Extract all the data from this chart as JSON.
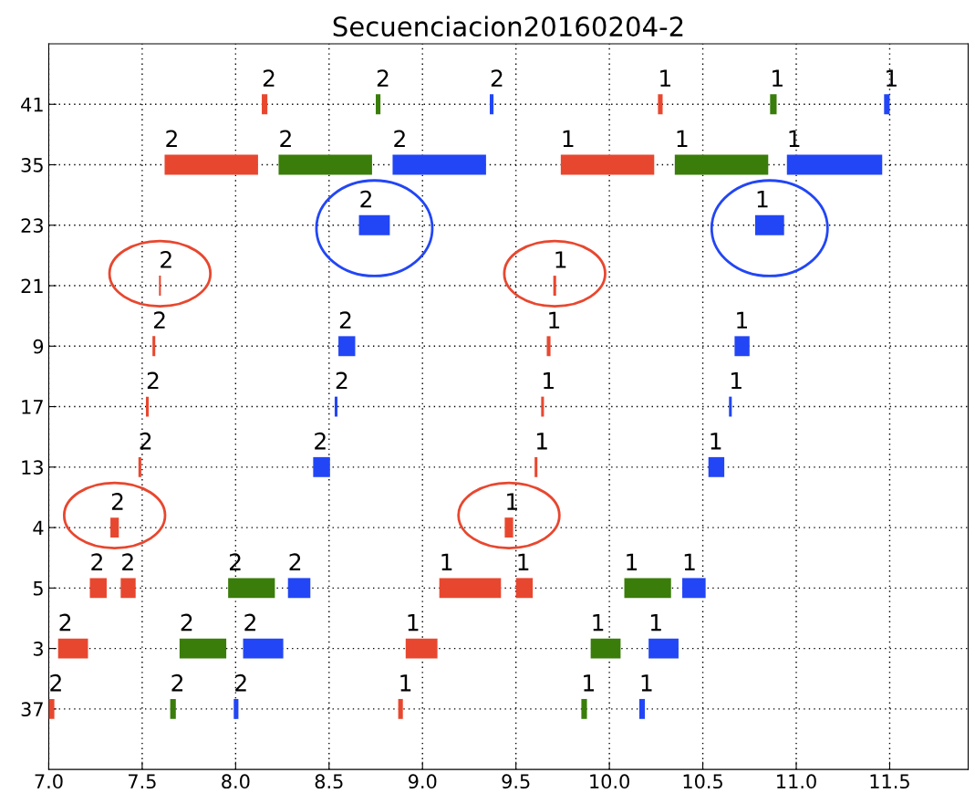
{
  "chart_data": {
    "type": "bar",
    "orientation": "horizontal",
    "title": "Secuenciacion20160204-2",
    "categories": [
      "41",
      "35",
      "23",
      "21",
      "9",
      "17",
      "13",
      "4",
      "5",
      "3",
      "37"
    ],
    "xlim": [
      7.0,
      11.92
    ],
    "xticks": [
      {
        "value": 7,
        "label": "7.0"
      },
      {
        "value": 7.5,
        "label": "7.5"
      },
      {
        "value": 8,
        "label": "8.0"
      },
      {
        "value": 8.5,
        "label": "8.5"
      },
      {
        "value": 9,
        "label": "9.0"
      },
      {
        "value": 9.5,
        "label": "9.5"
      },
      {
        "value": 10,
        "label": "10.0"
      },
      {
        "value": 10.5,
        "label": "10.5"
      },
      {
        "value": 11,
        "label": "11.0"
      },
      {
        "value": 11.5,
        "label": "11.5"
      }
    ],
    "grid": true,
    "series": [
      {
        "base": [
          8.14,
          7.62,
          8.66,
          7.59,
          7.555,
          7.52,
          7.48,
          7.33,
          7.22,
          7.05,
          7.0
        ],
        "values": [
          0.03,
          0.5,
          0.165,
          0.01,
          0.015,
          0.015,
          0.015,
          0.045,
          0.09,
          0.16,
          0.03
        ],
        "colors": [
          "#e8472f",
          "#e8472f",
          "#2246f5",
          "#e8472f",
          "#e8472f",
          "#e8472f",
          "#e8472f",
          "#e8472f",
          "#e8472f",
          "#e8472f",
          "#e8472f"
        ]
      },
      {
        "base": [
          8.75,
          8.23,
          10.78,
          9.7,
          8.55,
          8.53,
          8.415,
          9.44,
          7.385,
          7.7,
          7.65
        ],
        "values": [
          0.025,
          0.5,
          0.155,
          0.015,
          0.09,
          0.015,
          0.09,
          0.045,
          0.08,
          0.25,
          0.03
        ],
        "colors": [
          "#3a7d0a",
          "#3a7d0a",
          "#2246f5",
          "#e8472f",
          "#2246f5",
          "#2246f5",
          "#2246f5",
          "#e8472f",
          "#e8472f",
          "#3a7d0a",
          "#3a7d0a"
        ]
      },
      {
        "base": [
          9.36,
          8.84,
          null,
          null,
          9.665,
          9.635,
          9.6,
          null,
          7.96,
          8.04,
          7.99
        ],
        "values": [
          0.02,
          0.5,
          null,
          null,
          0.02,
          0.015,
          0.015,
          null,
          0.25,
          0.215,
          0.025
        ],
        "colors": [
          "#2246f5",
          "#2246f5",
          null,
          null,
          "#e8472f",
          "#e8472f",
          "#e8472f",
          null,
          "#3a7d0a",
          "#2246f5",
          "#2246f5"
        ]
      },
      {
        "base": [
          10.26,
          9.74,
          null,
          null,
          10.67,
          10.64,
          10.53,
          null,
          8.28,
          8.91,
          8.87
        ],
        "values": [
          0.025,
          0.5,
          null,
          null,
          0.08,
          0.015,
          0.085,
          null,
          0.12,
          0.17,
          0.025
        ],
        "colors": [
          "#e8472f",
          "#e8472f",
          null,
          null,
          "#2246f5",
          "#2246f5",
          "#2246f5",
          null,
          "#2246f5",
          "#e8472f",
          "#e8472f"
        ]
      },
      {
        "base": [
          10.86,
          10.35,
          null,
          null,
          null,
          null,
          null,
          null,
          9.09,
          9.9,
          9.85
        ],
        "values": [
          0.035,
          0.5,
          null,
          null,
          null,
          null,
          null,
          null,
          0.33,
          0.16,
          0.03
        ],
        "colors": [
          "#3a7d0a",
          "#3a7d0a",
          null,
          null,
          null,
          null,
          null,
          null,
          "#e8472f",
          "#3a7d0a",
          "#3a7d0a"
        ]
      },
      {
        "base": [
          11.47,
          10.95,
          null,
          null,
          null,
          null,
          null,
          null,
          9.5,
          10.21,
          10.16
        ],
        "values": [
          0.03,
          0.51,
          null,
          null,
          null,
          null,
          null,
          null,
          0.09,
          0.16,
          0.03
        ],
        "colors": [
          "#2246f5",
          "#2246f5",
          null,
          null,
          null,
          null,
          null,
          null,
          "#e8472f",
          "#2246f5",
          "#2246f5"
        ]
      },
      {
        "base": [
          null,
          null,
          null,
          null,
          null,
          null,
          null,
          null,
          10.08,
          null,
          null
        ],
        "values": [
          null,
          null,
          null,
          null,
          null,
          null,
          null,
          null,
          0.25,
          null,
          null
        ],
        "colors": [
          null,
          null,
          null,
          null,
          null,
          null,
          null,
          null,
          "#3a7d0a",
          null,
          null
        ]
      },
      {
        "base": [
          null,
          null,
          null,
          null,
          null,
          null,
          null,
          null,
          10.39,
          null,
          null
        ],
        "values": [
          null,
          null,
          null,
          null,
          null,
          null,
          null,
          null,
          0.125,
          null,
          null
        ],
        "colors": [
          null,
          null,
          null,
          null,
          null,
          null,
          null,
          null,
          "#2246f5",
          null,
          null
        ]
      }
    ],
    "annotations": [
      {
        "text": "2",
        "x": 8.14,
        "y": "41"
      },
      {
        "text": "2",
        "x": 8.75,
        "y": "41"
      },
      {
        "text": "2",
        "x": 9.36,
        "y": "41"
      },
      {
        "text": "1",
        "x": 10.26,
        "y": "41"
      },
      {
        "text": "1",
        "x": 10.86,
        "y": "41"
      },
      {
        "text": "1",
        "x": 11.47,
        "y": "41"
      },
      {
        "text": "2",
        "x": 7.62,
        "y": "35"
      },
      {
        "text": "2",
        "x": 8.23,
        "y": "35"
      },
      {
        "text": "2",
        "x": 8.84,
        "y": "35"
      },
      {
        "text": "1",
        "x": 9.74,
        "y": "35"
      },
      {
        "text": "1",
        "x": 10.35,
        "y": "35"
      },
      {
        "text": "1",
        "x": 10.95,
        "y": "35"
      },
      {
        "text": "2",
        "x": 8.66,
        "y": "23"
      },
      {
        "text": "1",
        "x": 10.78,
        "y": "23"
      },
      {
        "text": "2",
        "x": 7.59,
        "y": "21"
      },
      {
        "text": "1",
        "x": 9.7,
        "y": "21"
      },
      {
        "text": "2",
        "x": 7.555,
        "y": "9"
      },
      {
        "text": "2",
        "x": 8.55,
        "y": "9"
      },
      {
        "text": "1",
        "x": 9.665,
        "y": "9"
      },
      {
        "text": "1",
        "x": 10.67,
        "y": "9"
      },
      {
        "text": "2",
        "x": 7.52,
        "y": "17"
      },
      {
        "text": "2",
        "x": 8.53,
        "y": "17"
      },
      {
        "text": "1",
        "x": 9.635,
        "y": "17"
      },
      {
        "text": "1",
        "x": 10.64,
        "y": "17"
      },
      {
        "text": "2",
        "x": 7.48,
        "y": "13"
      },
      {
        "text": "2",
        "x": 8.415,
        "y": "13"
      },
      {
        "text": "1",
        "x": 9.6,
        "y": "13"
      },
      {
        "text": "1",
        "x": 10.53,
        "y": "13"
      },
      {
        "text": "2",
        "x": 7.33,
        "y": "4"
      },
      {
        "text": "1",
        "x": 9.44,
        "y": "4"
      },
      {
        "text": "2",
        "x": 7.22,
        "y": "5"
      },
      {
        "text": "2",
        "x": 7.385,
        "y": "5"
      },
      {
        "text": "2",
        "x": 7.96,
        "y": "5"
      },
      {
        "text": "2",
        "x": 8.28,
        "y": "5"
      },
      {
        "text": "1",
        "x": 9.09,
        "y": "5"
      },
      {
        "text": "1",
        "x": 9.5,
        "y": "5"
      },
      {
        "text": "1",
        "x": 10.08,
        "y": "5"
      },
      {
        "text": "1",
        "x": 10.39,
        "y": "5"
      },
      {
        "text": "2",
        "x": 7.05,
        "y": "3"
      },
      {
        "text": "2",
        "x": 7.7,
        "y": "3"
      },
      {
        "text": "2",
        "x": 8.04,
        "y": "3"
      },
      {
        "text": "1",
        "x": 8.91,
        "y": "3"
      },
      {
        "text": "1",
        "x": 9.9,
        "y": "3"
      },
      {
        "text": "1",
        "x": 10.21,
        "y": "3"
      },
      {
        "text": "2",
        "x": 7.0,
        "y": "37"
      },
      {
        "text": "2",
        "x": 7.65,
        "y": "37"
      },
      {
        "text": "2",
        "x": 7.99,
        "y": "37"
      },
      {
        "text": "1",
        "x": 8.87,
        "y": "37"
      },
      {
        "text": "1",
        "x": 9.85,
        "y": "37"
      },
      {
        "text": "1",
        "x": 10.16,
        "y": "37"
      }
    ]
  }
}
